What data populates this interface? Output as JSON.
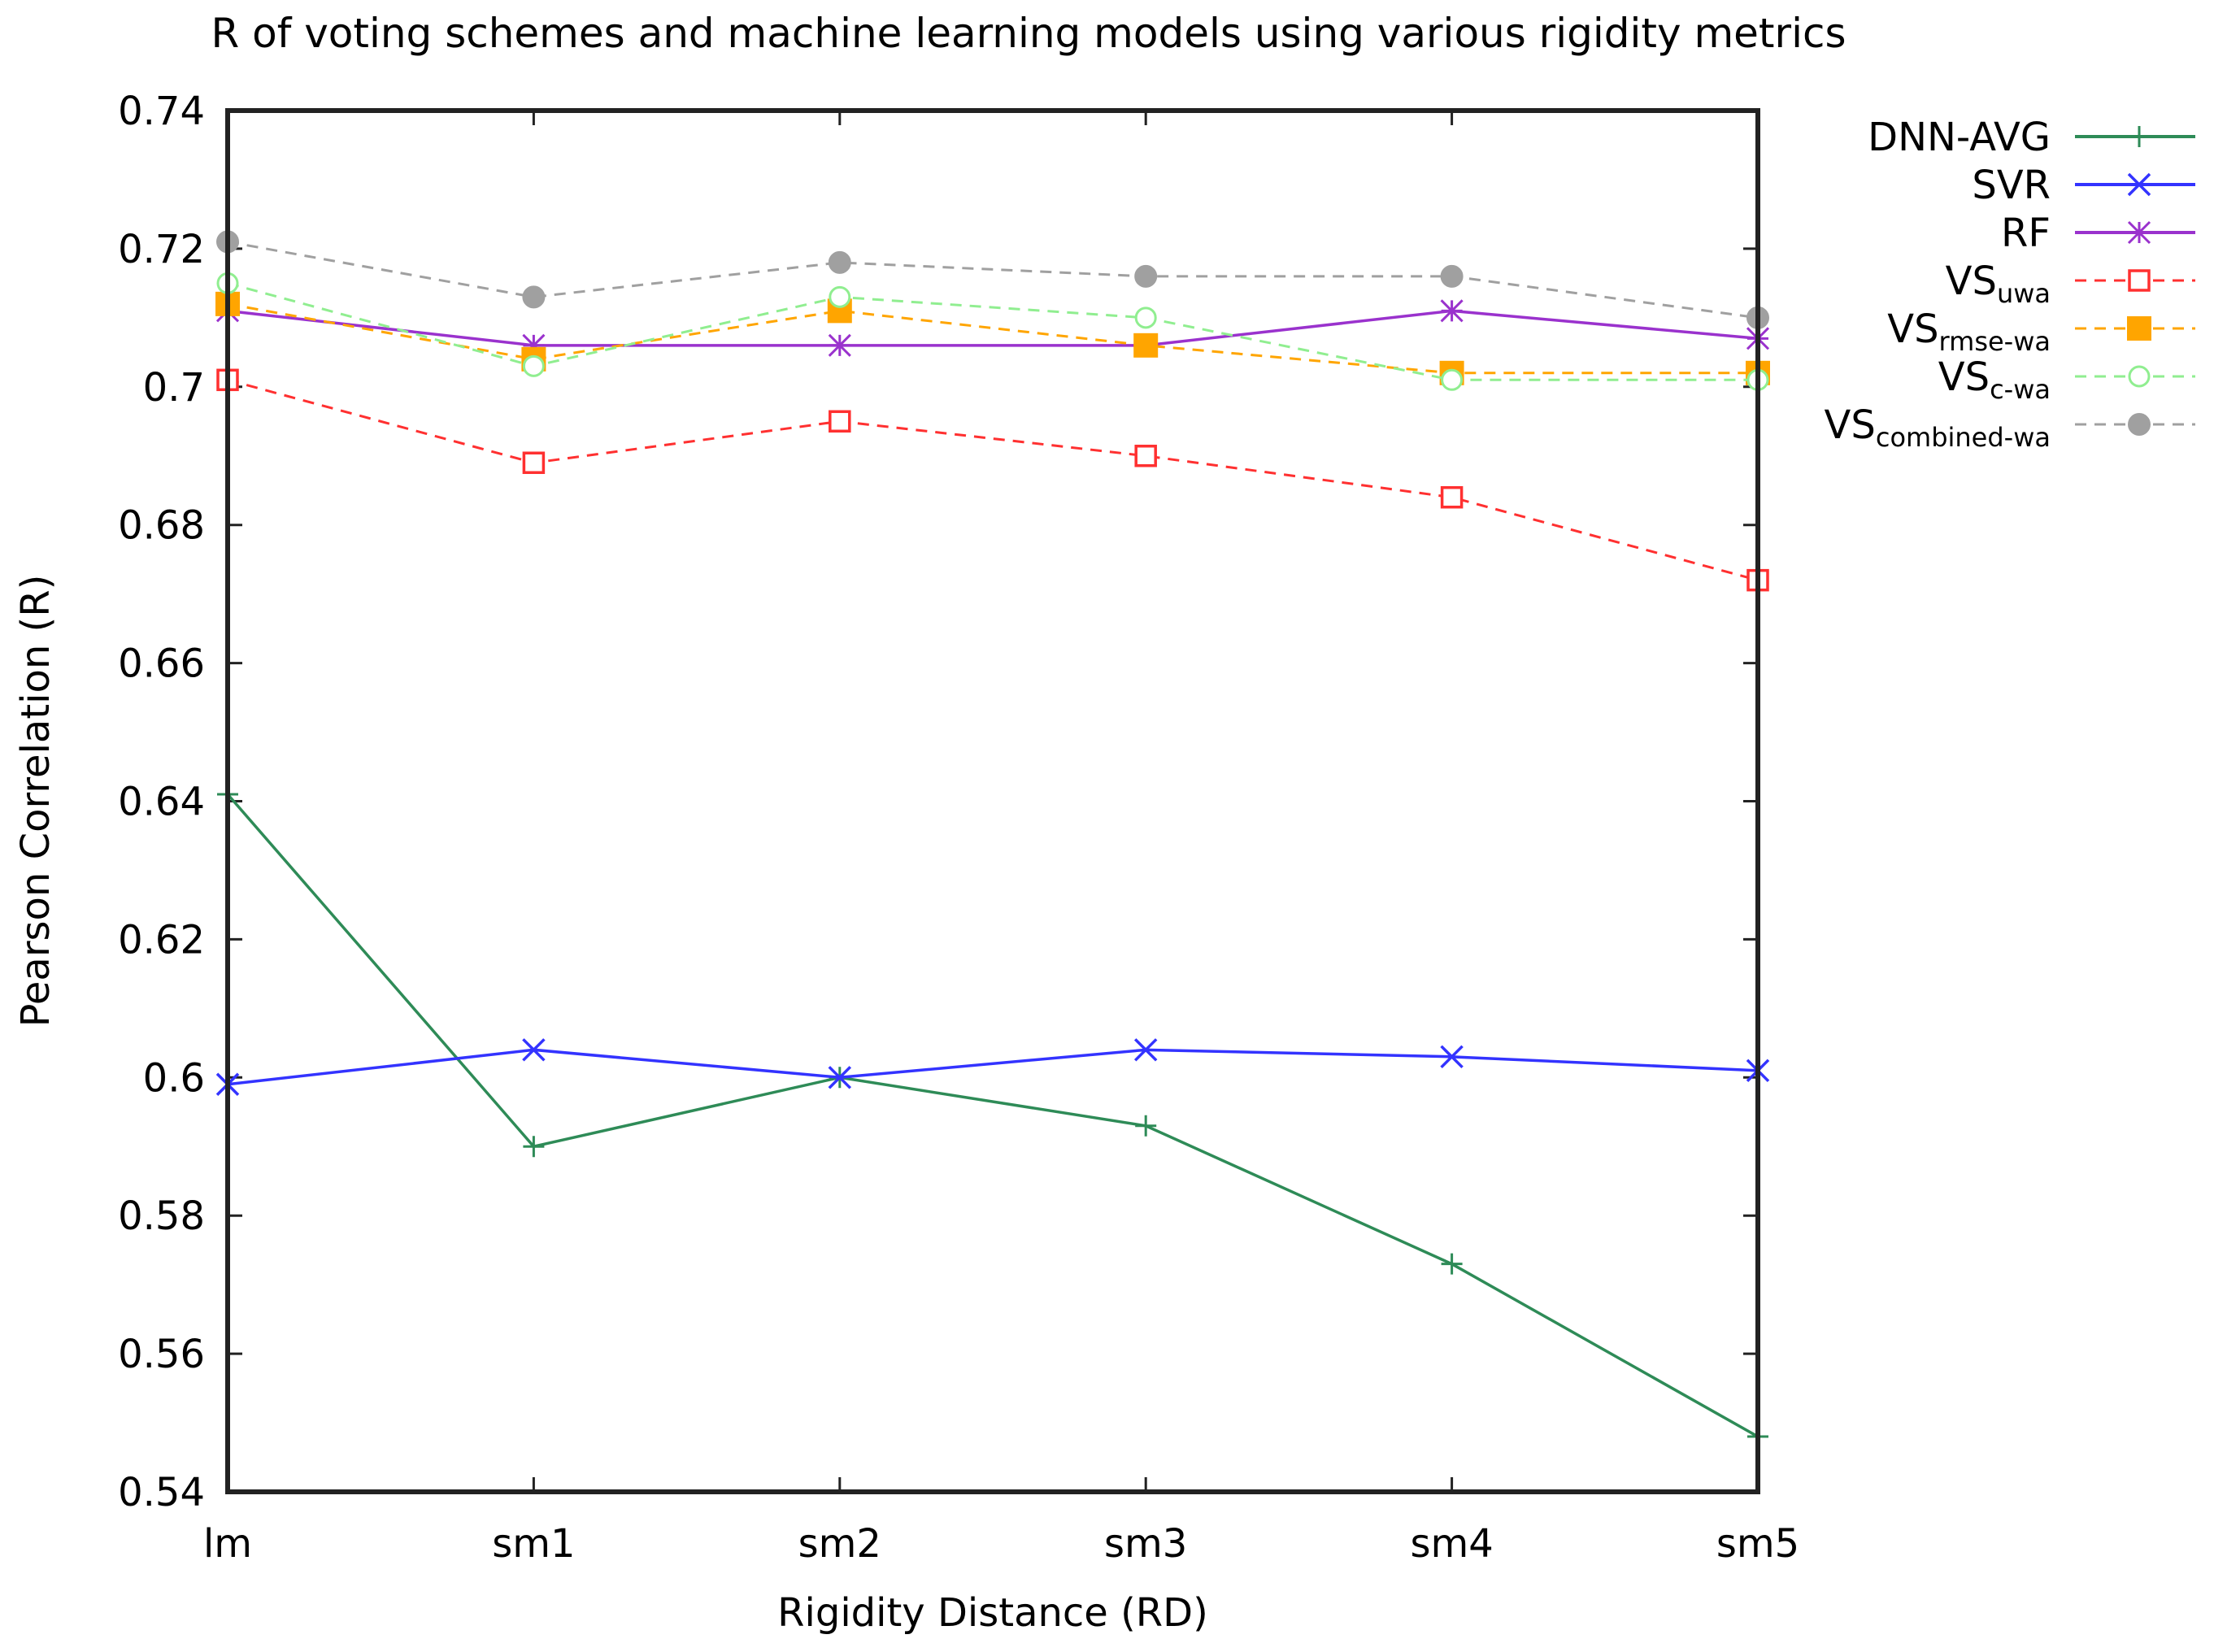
{
  "chart_data": {
    "type": "line",
    "title": "R of voting schemes and machine learning models using various rigidity metrics",
    "xlabel": "Rigidity Distance (RD)",
    "ylabel": "Pearson Correlation (R)",
    "categories": [
      "lm",
      "sm1",
      "sm2",
      "sm3",
      "sm4",
      "sm5"
    ],
    "ylim": [
      0.54,
      0.74
    ],
    "yticks": [
      0.54,
      0.56,
      0.58,
      0.6,
      0.62,
      0.64,
      0.66,
      0.68,
      0.7,
      0.72,
      0.74
    ],
    "ytick_labels": [
      "0.54",
      "0.56",
      "0.58",
      "0.6",
      "0.62",
      "0.64",
      "0.66",
      "0.68",
      "0.7",
      "0.72",
      "0.74"
    ],
    "grid": false,
    "legend_position": "outside-top-right",
    "series": [
      {
        "name": "DNN-AVG",
        "label_main": "DNN-AVG",
        "label_sub": "",
        "color": "#2e8b57",
        "dash": false,
        "marker": "plus",
        "values": [
          0.641,
          0.59,
          0.6,
          0.593,
          0.573,
          0.548
        ]
      },
      {
        "name": "SVR",
        "label_main": "SVR",
        "label_sub": "",
        "color": "#3333ff",
        "dash": false,
        "marker": "cross",
        "values": [
          0.599,
          0.604,
          0.6,
          0.604,
          0.603,
          0.601
        ]
      },
      {
        "name": "RF",
        "label_main": "RF",
        "label_sub": "",
        "color": "#9a32cd",
        "dash": false,
        "marker": "star",
        "values": [
          0.711,
          0.706,
          0.706,
          0.706,
          0.711,
          0.707
        ]
      },
      {
        "name": "VS_uwa",
        "label_main": "VS",
        "label_sub": "uwa",
        "color": "#ff3030",
        "dash": true,
        "marker": "open-square",
        "values": [
          0.701,
          0.689,
          0.695,
          0.69,
          0.684,
          0.672
        ]
      },
      {
        "name": "VS_rmse-wa",
        "label_main": "VS",
        "label_sub": "rmse-wa",
        "color": "#ffa500",
        "dash": true,
        "marker": "filled-square",
        "values": [
          0.712,
          0.704,
          0.711,
          0.706,
          0.702,
          0.702
        ]
      },
      {
        "name": "VS_c-wa",
        "label_main": "VS",
        "label_sub": "c-wa",
        "color": "#90ee90",
        "dash": true,
        "marker": "open-circle",
        "values": [
          0.715,
          0.703,
          0.713,
          0.71,
          0.701,
          0.701
        ]
      },
      {
        "name": "VS_combined-wa",
        "label_main": "VS",
        "label_sub": "combined-wa",
        "color": "#a0a0a0",
        "dash": true,
        "marker": "filled-circle",
        "values": [
          0.721,
          0.713,
          0.718,
          0.716,
          0.716,
          0.71
        ]
      }
    ]
  }
}
